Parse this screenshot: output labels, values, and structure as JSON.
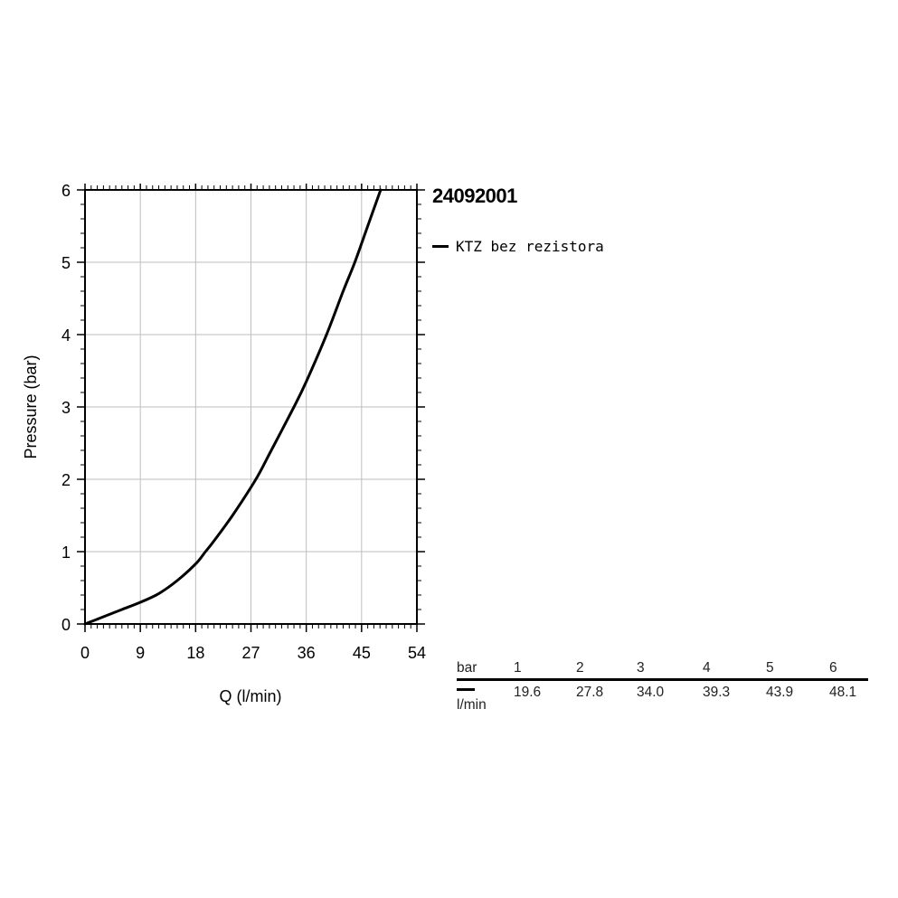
{
  "product_id": "24092001",
  "legend": {
    "label": "KTZ bez rezistora",
    "color": "#000000"
  },
  "chart_data": {
    "type": "line",
    "xlabel": "Q (l/min)",
    "ylabel": "Pressure (bar)",
    "xlim": [
      0,
      54
    ],
    "ylim": [
      0,
      6
    ],
    "x_ticks": [
      0,
      9,
      18,
      27,
      36,
      45,
      54
    ],
    "y_ticks": [
      0,
      1,
      2,
      3,
      4,
      5,
      6
    ],
    "grid": true,
    "series": [
      {
        "name": "KTZ bez rezistora",
        "color": "#000000",
        "x": [
          0,
          3,
          6,
          9,
          12,
          15,
          18,
          19.6,
          21,
          24,
          27.8,
          30,
          34.0,
          36,
          39.3,
          42,
          43.9,
          46,
          48.1
        ],
        "y": [
          0,
          0.1,
          0.2,
          0.3,
          0.42,
          0.6,
          0.83,
          1,
          1.15,
          1.5,
          2,
          2.35,
          3,
          3.35,
          4,
          4.6,
          5,
          5.5,
          6
        ]
      }
    ]
  },
  "flow_table": {
    "pressure_unit": "bar",
    "flow_unit": "l/min",
    "pressures": [
      "1",
      "2",
      "3",
      "4",
      "5",
      "6"
    ],
    "flows": [
      "19.6",
      "27.8",
      "34.0",
      "39.3",
      "43.9",
      "48.1"
    ]
  }
}
